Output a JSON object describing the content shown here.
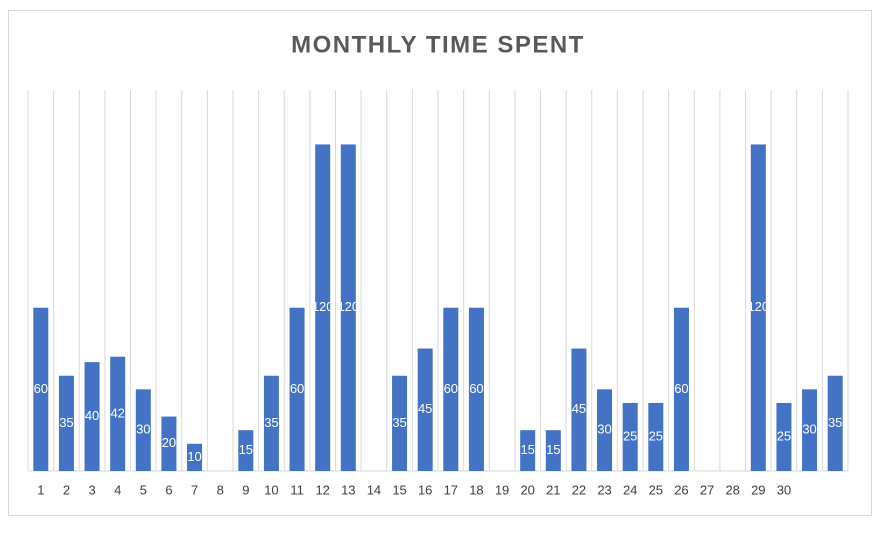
{
  "chart_data": {
    "type": "bar",
    "title": "MONTHLY TIME SPENT",
    "categories": [
      "1",
      "2",
      "3",
      "4",
      "5",
      "6",
      "7",
      "8",
      "9",
      "10",
      "11",
      "12",
      "13",
      "14",
      "15",
      "16",
      "17",
      "18",
      "19",
      "20",
      "21",
      "22",
      "23",
      "24",
      "25",
      "26",
      "27",
      "28",
      "29",
      "30",
      null,
      null
    ],
    "values": [
      60,
      35,
      40,
      42,
      30,
      20,
      10,
      null,
      15,
      35,
      60,
      120,
      120,
      null,
      35,
      45,
      60,
      60,
      null,
      15,
      15,
      45,
      30,
      25,
      25,
      60,
      null,
      null,
      120,
      25,
      30,
      35
    ],
    "color": "#4472c4",
    "ylim": [
      0,
      140
    ]
  }
}
